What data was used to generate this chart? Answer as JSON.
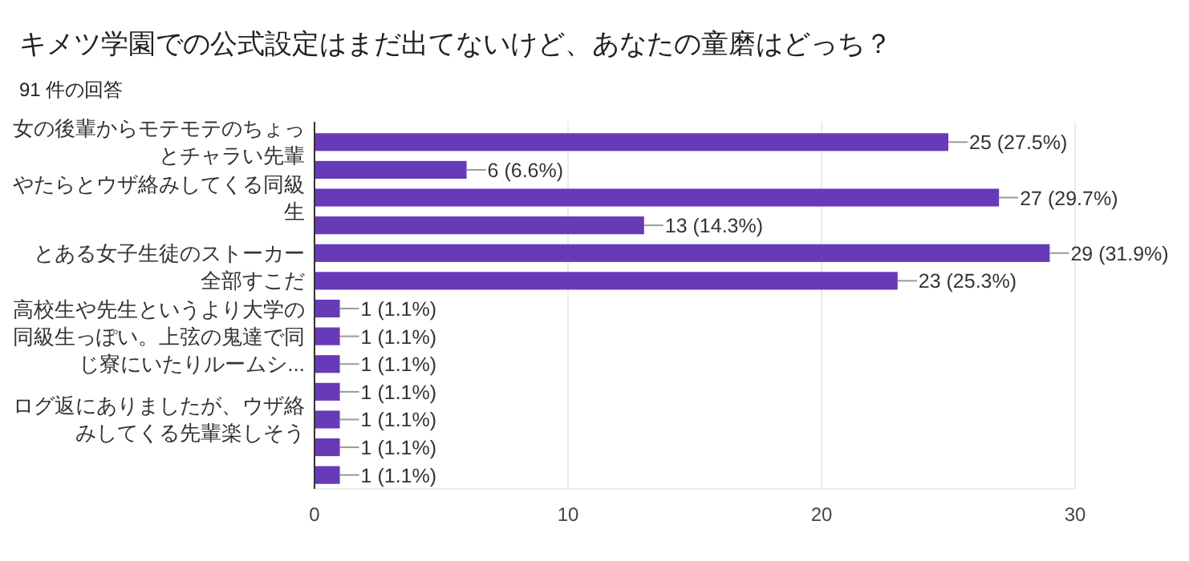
{
  "chart_data": {
    "type": "bar",
    "orientation": "horizontal",
    "title": "キメツ学園での公式設定はまだ出てないけど、あなたの童磨はどっち？",
    "subtitle": "91 件の回答",
    "categories": [
      "女の後輩からモテモテのちょっとチャラい先輩",
      null,
      "やたらとウザ絡みしてくる同級生",
      null,
      "とある女子生徒のストーカー",
      "全部すこだ",
      null,
      "高校生や先生というより大学の同級生っぽい。上弦の鬼達で同じ寮にいたりルームシ...",
      null,
      null,
      "ログ返にありましたが、ウザ絡みしてくる先輩楽しそう",
      null,
      null
    ],
    "values": [
      25,
      6,
      27,
      13,
      29,
      23,
      1,
      1,
      1,
      1,
      1,
      1,
      1
    ],
    "value_labels": [
      "25 (27.5%)",
      "6 (6.6%)",
      "27 (29.7%)",
      "13 (14.3%)",
      "29 (31.9%)",
      "23 (25.3%)",
      "1 (1.1%)",
      "1 (1.1%)",
      "1 (1.1%)",
      "1 (1.1%)",
      "1 (1.1%)",
      "1 (1.1%)",
      "1 (1.1%)"
    ],
    "color": "#673ab7",
    "xlim": [
      0,
      30
    ],
    "xticks": [
      0,
      10,
      20,
      30
    ],
    "grid": "x"
  }
}
